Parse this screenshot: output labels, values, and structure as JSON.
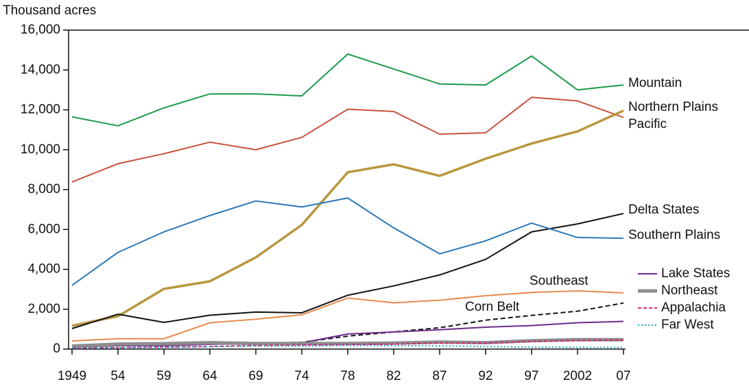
{
  "chart_data": {
    "type": "line",
    "y_label": "Thousand acres",
    "categories": [
      "1949",
      "54",
      "59",
      "64",
      "69",
      "74",
      "78",
      "82",
      "87",
      "92",
      "97",
      "2002",
      "07"
    ],
    "ylim": [
      0,
      16000
    ],
    "yticks": [
      0,
      {
        "value": 2000,
        "label": "2,000"
      },
      {
        "value": 4000,
        "label": "4,000"
      },
      {
        "value": 6000,
        "label": "6,000"
      },
      {
        "value": 8000,
        "label": "8,000"
      },
      {
        "value": 10000,
        "label": "10,000"
      },
      {
        "value": 12000,
        "label": "12,000"
      },
      {
        "value": 14000,
        "label": "14,000"
      },
      {
        "value": 16000,
        "label": "16,000"
      }
    ],
    "series": [
      {
        "name": "Mountain",
        "color": "#1a9a4a",
        "values": [
          11650,
          11200,
          12100,
          12800,
          12800,
          12700,
          14800,
          14050,
          13300,
          13250,
          14700,
          13000,
          13250
        ]
      },
      {
        "name": "Northern Plains",
        "color": "#c8503c",
        "values": [
          8380,
          9300,
          9800,
          10380,
          10000,
          10620,
          12030,
          11920,
          10780,
          10850,
          12630,
          12450,
          11620
        ]
      },
      {
        "name": "Pacific",
        "color": "#b8963c",
        "values": [
          1170,
          1650,
          3020,
          3400,
          4600,
          6230,
          8870,
          9270,
          8690,
          9550,
          10310,
          10920,
          11960
        ]
      },
      {
        "name": "Delta States",
        "color": "#111111",
        "values": [
          1030,
          1750,
          1340,
          1700,
          1860,
          1820,
          2700,
          3170,
          3720,
          4500,
          5880,
          6280,
          6800
        ]
      },
      {
        "name": "Southern Plains",
        "color": "#2a78b8",
        "values": [
          3200,
          4850,
          5880,
          6700,
          7430,
          7130,
          7580,
          6080,
          4780,
          5430,
          6320,
          5600,
          5560
        ]
      },
      {
        "name": "Southeast",
        "color": "#e8874a",
        "values": [
          410,
          520,
          520,
          1320,
          1500,
          1720,
          2560,
          2320,
          2450,
          2680,
          2840,
          2920,
          2820
        ]
      },
      {
        "name": "Corn Belt",
        "color": "#111111",
        "values": [
          140,
          200,
          240,
          270,
          310,
          340,
          650,
          860,
          1070,
          1450,
          1690,
          1900,
          2310
        ]
      },
      {
        "name": "Lake States",
        "color": "#6a2a8a",
        "values": [
          100,
          170,
          170,
          240,
          270,
          310,
          760,
          860,
          970,
          1100,
          1180,
          1320,
          1390
        ]
      },
      {
        "name": "Northeast",
        "color": "#8c8c8c",
        "values": [
          150,
          250,
          270,
          320,
          280,
          280,
          280,
          300,
          350,
          320,
          420,
          470,
          470
        ]
      },
      {
        "name": "Appalachia",
        "color": "#d6267a",
        "values": [
          50,
          80,
          100,
          130,
          180,
          200,
          230,
          250,
          300,
          300,
          380,
          430,
          450
        ]
      },
      {
        "name": "Far West",
        "color": "#1aa8c8",
        "values": [
          50,
          70,
          80,
          120,
          150,
          150,
          180,
          170,
          160,
          130,
          100,
          90,
          80
        ]
      }
    ]
  }
}
